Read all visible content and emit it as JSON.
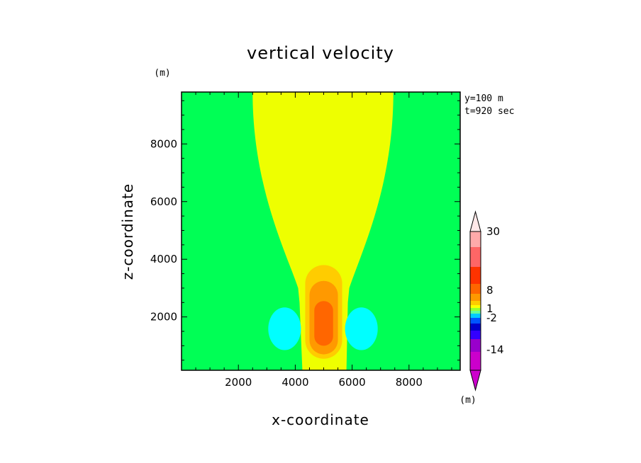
{
  "chart_data": {
    "type": "heatmap",
    "title": "vertical velocity",
    "xlabel": "x-coordinate",
    "ylabel": "z-coordinate",
    "y_unit": "(m)",
    "colorbar_unit": "(m)",
    "annotations": [
      "y=100 m",
      "t=920 sec"
    ],
    "xlim": [
      0,
      9800
    ],
    "ylim": [
      150,
      9800
    ],
    "x_ticks": [
      2000,
      4000,
      6000,
      8000
    ],
    "y_ticks": [
      2000,
      4000,
      6000,
      8000
    ],
    "colorbar": {
      "labeled_levels": [
        "30",
        "8",
        "1",
        "-2",
        "-14"
      ],
      "colors_bottom_to_top": [
        "#cc00cc",
        "#9900cc",
        "#3300ff",
        "#0000cc",
        "#0055ff",
        "#00ccff",
        "#66ff99",
        "#99ff33",
        "#ffff00",
        "#ffcc00",
        "#ff9900",
        "#ff6600",
        "#ff3300",
        "#ff6666",
        "#ffaaaa"
      ],
      "lower_triangle": "#cc00cc",
      "upper_triangle": "#ffe8e8"
    },
    "fields": {
      "background": {
        "color": "#00ff55"
      },
      "updraft_column": {
        "color": "#eeff00",
        "x_at_top": [
          2500,
          7450
        ],
        "x_at_bottom": [
          4250,
          5800
        ]
      },
      "updraft_core_levels": [
        {
          "color": "#ffcc00",
          "center": [
            5000,
            2000
          ],
          "half_width": 650,
          "top": 3800
        },
        {
          "color": "#ff9900",
          "center": [
            5000,
            1800
          ],
          "half_width": 500,
          "top": 3250
        },
        {
          "color": "#ff6600",
          "center": [
            5000,
            1800
          ],
          "half_width": 330,
          "top": 2550
        }
      ],
      "downdrafts": [
        {
          "color": "#00ffff",
          "center": [
            3800,
            1600
          ],
          "x_range": [
            3050,
            4200
          ],
          "z_range": [
            850,
            2330
          ]
        },
        {
          "color": "#00ffff",
          "center": [
            6150,
            1600
          ],
          "x_range": [
            5750,
            6900
          ],
          "z_range": [
            850,
            2330
          ]
        }
      ]
    }
  }
}
